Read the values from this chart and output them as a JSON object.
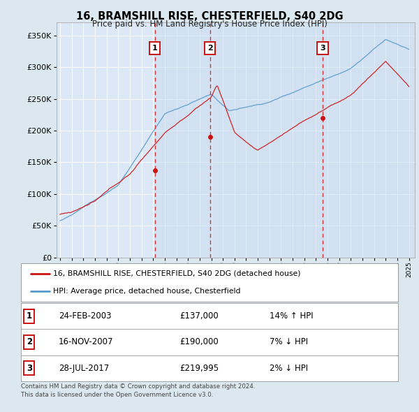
{
  "title": "16, BRAMSHILL RISE, CHESTERFIELD, S40 2DG",
  "subtitle": "Price paid vs. HM Land Registry's House Price Index (HPI)",
  "background_color": "#dce8f0",
  "plot_bg_color": "#dce8f5",
  "ylim": [
    0,
    370000
  ],
  "yticks": [
    0,
    50000,
    100000,
    150000,
    200000,
    250000,
    300000,
    350000
  ],
  "sale_dates": [
    2003.14,
    2007.88,
    2017.57
  ],
  "sale_prices": [
    137000,
    190000,
    219995
  ],
  "sale_labels": [
    "1",
    "2",
    "3"
  ],
  "vline_dates": [
    2003.14,
    2007.88,
    2017.57
  ],
  "legend_line1": "16, BRAMSHILL RISE, CHESTERFIELD, S40 2DG (detached house)",
  "legend_line2": "HPI: Average price, detached house, Chesterfield",
  "table_entries": [
    {
      "num": "1",
      "date": "24-FEB-2003",
      "price": "£137,000",
      "pct": "14% ↑ HPI"
    },
    {
      "num": "2",
      "date": "16-NOV-2007",
      "price": "£190,000",
      "pct": "7% ↓ HPI"
    },
    {
      "num": "3",
      "date": "28-JUL-2017",
      "price": "£219,995",
      "pct": "2% ↓ HPI"
    }
  ],
  "footer": "Contains HM Land Registry data © Crown copyright and database right 2024.\nThis data is licensed under the Open Government Licence v3.0.",
  "red_line_color": "#cc1111",
  "blue_line_color": "#5599cc",
  "vline_color": "#dd3333",
  "shade_color": "#c8ddf0"
}
